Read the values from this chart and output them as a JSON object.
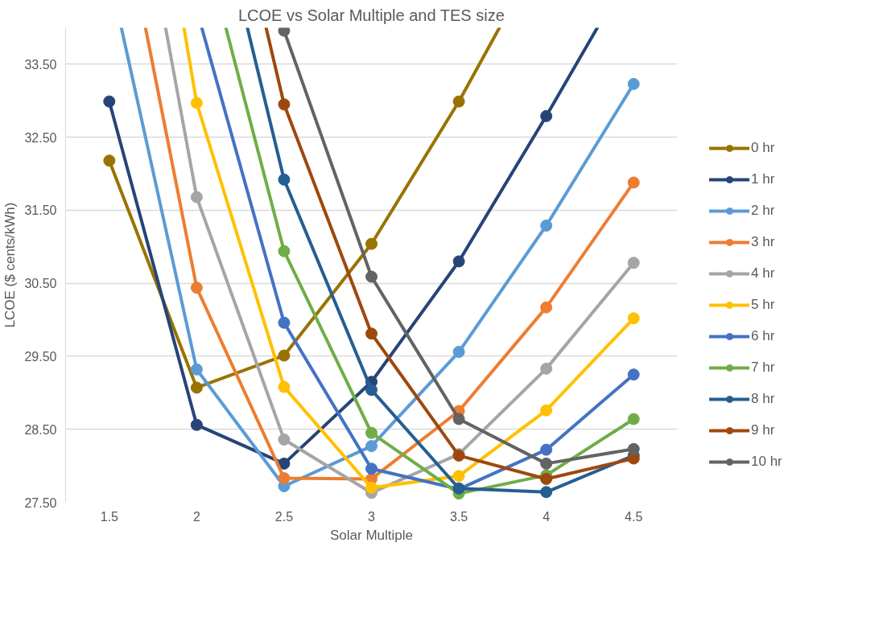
{
  "chart_data": {
    "type": "line",
    "title": "LCOE vs Solar Multiple and TES size",
    "xlabel": "Solar Multiple",
    "ylabel": "LCOE ($ cents/kWh)",
    "xlim": [
      1.25,
      4.75
    ],
    "xticks": [
      1.5,
      2,
      2.5,
      3,
      3.5,
      4,
      4.5
    ],
    "ylim": [
      27.5,
      34
    ],
    "yticks": [
      {
        "value": 27.5,
        "label": "27.50"
      },
      {
        "value": 28.5,
        "label": "28.50"
      },
      {
        "value": 29.5,
        "label": "29.50"
      },
      {
        "value": 30.5,
        "label": "30.50"
      },
      {
        "value": 31.5,
        "label": "31.50"
      },
      {
        "value": 32.5,
        "label": "32.50"
      },
      {
        "value": 33.5,
        "label": "33.50"
      }
    ],
    "grid": "y",
    "legend": "right",
    "marker": "circle",
    "line_style": "solid",
    "series": [
      {
        "name": "0 hr",
        "color": "#997300",
        "x": [
          1.5,
          2,
          2.5,
          3,
          3.5,
          3.732
        ],
        "values": [
          32.18,
          29.07,
          29.51,
          31.04,
          32.99,
          34
        ]
      },
      {
        "name": "1 hr",
        "color": "#264478",
        "x": [
          1.5,
          2,
          2.5,
          3,
          3.5,
          4,
          4.292
        ],
        "values": [
          32.99,
          28.56,
          28.03,
          29.15,
          30.8,
          32.79,
          34
        ]
      },
      {
        "name": "2 hr",
        "color": "#5b9bd5",
        "x": [
          1.569,
          2,
          2.5,
          3,
          3.5,
          4,
          4.5
        ],
        "values": [
          34,
          29.32,
          27.72,
          28.27,
          29.56,
          31.29,
          33.23
        ]
      },
      {
        "name": "3 hr",
        "color": "#ed7d31",
        "x": [
          1.707,
          2,
          2.5,
          3,
          3.5,
          4,
          4.5
        ],
        "values": [
          34,
          30.44,
          27.83,
          27.82,
          28.75,
          30.17,
          31.88
        ]
      },
      {
        "name": "4 hr",
        "color": "#a5a5a5",
        "x": [
          1.822,
          2,
          2.5,
          3,
          3.5,
          4,
          4.5
        ],
        "values": [
          34,
          31.68,
          28.36,
          27.63,
          28.16,
          29.33,
          30.78
        ]
      },
      {
        "name": "5 hr",
        "color": "#ffc000",
        "x": [
          1.927,
          2,
          2.5,
          3,
          3.5,
          4,
          4.5
        ],
        "values": [
          34,
          32.97,
          29.08,
          27.7,
          27.86,
          28.76,
          30.02
        ]
      },
      {
        "name": "6 hr",
        "color": "#4472c4",
        "x": [
          2.029,
          2.5,
          3,
          3.5,
          4,
          4.5
        ],
        "values": [
          34,
          29.96,
          27.96,
          27.68,
          28.22,
          29.25
        ]
      },
      {
        "name": "7 hr",
        "color": "#70ad47",
        "x": [
          2.167,
          2.5,
          3,
          3.5,
          4,
          4.5
        ],
        "values": [
          34,
          30.94,
          28.45,
          27.62,
          27.87,
          28.64
        ]
      },
      {
        "name": "8 hr",
        "color": "#255e91",
        "x": [
          2.29,
          2.5,
          3,
          3.5,
          4,
          4.5
        ],
        "values": [
          34,
          31.92,
          29.04,
          27.69,
          27.64,
          28.14
        ]
      },
      {
        "name": "9 hr",
        "color": "#9e480e",
        "x": [
          2.397,
          2.5,
          3,
          3.5,
          4,
          4.5
        ],
        "values": [
          34,
          32.95,
          29.81,
          28.14,
          27.82,
          28.1
        ]
      },
      {
        "name": "10 hr",
        "color": "#636363",
        "x": [
          2.5,
          3,
          3.5,
          4,
          4.5
        ],
        "values": [
          33.96,
          30.59,
          28.64,
          28.03,
          28.23
        ]
      }
    ]
  }
}
